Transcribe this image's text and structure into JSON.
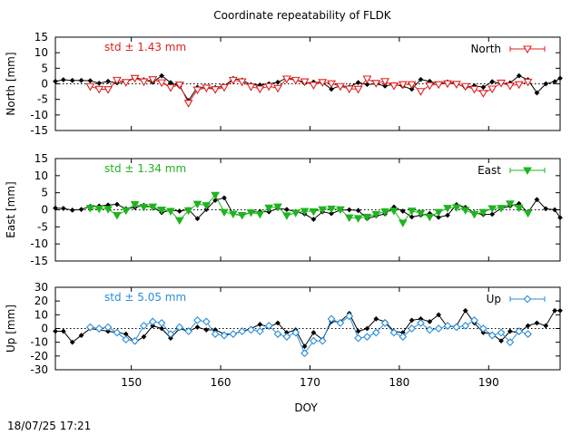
{
  "title": "Coordinate repeatability of FLDK",
  "timestamp": "18/07/25 17:21",
  "chart_data": [
    {
      "type": "line",
      "panel": "north",
      "ylabel": "North [mm]",
      "ylim": [
        -15,
        15
      ],
      "yticks": [
        15,
        10,
        5,
        0,
        -5,
        -10,
        -15
      ],
      "xlim": [
        141.5,
        198
      ],
      "xticks": [
        150,
        160,
        170,
        180,
        190
      ],
      "show_xtick_labels": false,
      "grid": false,
      "zero_line": "dotted",
      "annotation": {
        "text": "std ± 1.43 mm",
        "color": "#e0201e"
      },
      "legend": {
        "label": "North",
        "placement": "top-right",
        "marker": "triangle-down-open",
        "color": "#e0201e"
      },
      "series": [
        {
          "role": "reference",
          "color": "#000000",
          "marker": "diamond",
          "x": [
            141.5,
            142.4,
            143.4,
            144.4,
            145.4,
            146.4,
            147.4,
            148.4,
            149.4,
            150.4,
            151.4,
            152.4,
            153.4,
            154.4,
            155.4,
            156.4,
            157.4,
            158.4,
            159.4,
            160.4,
            161.4,
            162.4,
            163.4,
            164.4,
            165.4,
            166.4,
            167.4,
            168.4,
            169.4,
            170.4,
            171.4,
            172.4,
            173.4,
            174.4,
            175.4,
            176.4,
            177.4,
            178.4,
            179.4,
            180.4,
            181.4,
            182.4,
            183.4,
            184.4,
            185.4,
            186.4,
            187.4,
            188.4,
            189.4,
            190.4,
            191.4,
            192.4,
            193.4,
            194.4,
            195.4,
            196.4,
            197.4,
            198
          ],
          "y": [
            0.8,
            1.3,
            1.1,
            1.1,
            1.0,
            0.2,
            0.8,
            0.3,
            0.6,
            2.0,
            1.3,
            0.5,
            2.6,
            0.4,
            -0.8,
            -5.4,
            -1.1,
            -1.4,
            -1.2,
            -0.8,
            1.7,
            1.2,
            -0.3,
            -0.4,
            0.0,
            0.5,
            1.9,
            1.3,
            0.2,
            0.6,
            0.4,
            -1.7,
            -0.6,
            -1.0,
            0.4,
            -0.2,
            0.0,
            -0.7,
            -0.2,
            -0.8,
            -1.7,
            1.4,
            0.8,
            0.0,
            0.6,
            0.1,
            -1.2,
            -0.6,
            -1.1,
            0.7,
            0.0,
            0.3,
            2.6,
            1.3,
            -2.9,
            0.0,
            0.7,
            1.8
          ]
        },
        {
          "role": "North",
          "color": "#e0201e",
          "marker": "triangle-down-open",
          "x": [
            145.4,
            146.4,
            147.4,
            148.4,
            149.4,
            150.4,
            151.4,
            152.4,
            153.4,
            154.4,
            155.4,
            156.4,
            157.4,
            158.4,
            159.4,
            160.4,
            161.4,
            162.4,
            163.4,
            164.4,
            165.4,
            166.4,
            167.4,
            168.4,
            169.4,
            170.4,
            171.4,
            172.4,
            173.4,
            174.4,
            175.4,
            176.4,
            177.4,
            178.4,
            179.4,
            180.4,
            181.4,
            182.4,
            183.4,
            184.4,
            185.4,
            186.4,
            187.4,
            188.4,
            189.4,
            190.4,
            191.4,
            192.4,
            193.4,
            194.4
          ],
          "y": [
            -0.8,
            -1.7,
            -1.8,
            1.2,
            0.5,
            1.8,
            0.7,
            1.4,
            0.4,
            -1.2,
            -0.3,
            -6.2,
            -1.9,
            -1.3,
            -1.8,
            -1.1,
            1.2,
            0.7,
            -0.9,
            -1.6,
            -0.8,
            -1.4,
            1.6,
            1.2,
            0.7,
            -0.4,
            0.5,
            0.1,
            -0.8,
            -1.6,
            -1.7,
            1.6,
            0.2,
            0.8,
            -0.6,
            -0.2,
            -0.2,
            -2.4,
            -0.5,
            -0.2,
            0.1,
            -0.1,
            -0.8,
            -1.7,
            -3.0,
            -1.6,
            0.3,
            -0.6,
            -0.2,
            0.6
          ]
        }
      ]
    },
    {
      "type": "line",
      "panel": "east",
      "ylabel": "East [mm]",
      "ylim": [
        -15,
        15
      ],
      "yticks": [
        15,
        10,
        5,
        0,
        -5,
        -10,
        -15
      ],
      "xlim": [
        141.5,
        198
      ],
      "xticks": [
        150,
        160,
        170,
        180,
        190
      ],
      "show_xtick_labels": false,
      "grid": false,
      "zero_line": "dotted",
      "annotation": {
        "text": "std ± 1.34 mm",
        "color": "#1fb41f"
      },
      "legend": {
        "label": "East",
        "placement": "top-right",
        "marker": "triangle-down-filled",
        "color": "#1fb41f"
      },
      "series": [
        {
          "role": "reference",
          "color": "#000000",
          "marker": "diamond",
          "x": [
            141.5,
            142.4,
            143.4,
            144.4,
            145.4,
            146.4,
            147.4,
            148.4,
            149.4,
            150.4,
            151.4,
            152.4,
            153.4,
            154.4,
            155.4,
            156.4,
            157.4,
            158.4,
            159.4,
            160.4,
            161.4,
            162.4,
            163.4,
            164.4,
            165.4,
            166.4,
            167.4,
            168.4,
            169.4,
            170.4,
            171.4,
            172.4,
            173.4,
            174.4,
            175.4,
            176.4,
            177.4,
            178.4,
            179.4,
            180.4,
            181.4,
            182.4,
            183.4,
            184.4,
            185.4,
            186.4,
            187.4,
            188.4,
            189.4,
            190.4,
            191.4,
            192.4,
            193.4,
            194.4,
            195.4,
            196.4,
            197.4,
            198
          ],
          "y": [
            0.5,
            0.4,
            -0.1,
            0.1,
            1.0,
            1.1,
            1.4,
            1.6,
            0.3,
            0.7,
            1.3,
            0.7,
            -0.8,
            -0.1,
            -0.4,
            0.1,
            -2.6,
            0.1,
            2.8,
            3.5,
            -1.2,
            -1.7,
            -0.7,
            -0.5,
            -0.6,
            0.4,
            0.1,
            -0.6,
            -1.2,
            -2.8,
            -0.6,
            -1.1,
            -0.1,
            0.0,
            -0.2,
            -2.6,
            -1.8,
            -1.2,
            0.8,
            -0.4,
            -2.1,
            -1.6,
            -1.1,
            -2.2,
            -1.6,
            1.5,
            0.7,
            -0.9,
            -1.4,
            -1.3,
            0.4,
            1.1,
            1.8,
            -0.8,
            3.0,
            0.3,
            0.0,
            -2.3
          ]
        },
        {
          "role": "East",
          "color": "#1fb41f",
          "marker": "triangle-down-filled",
          "x": [
            145.4,
            146.4,
            147.4,
            148.4,
            149.4,
            150.4,
            151.4,
            152.4,
            153.4,
            154.4,
            155.4,
            156.4,
            157.4,
            158.4,
            159.4,
            160.4,
            161.4,
            162.4,
            163.4,
            164.4,
            165.4,
            166.4,
            167.4,
            168.4,
            169.4,
            170.4,
            171.4,
            172.4,
            173.4,
            174.4,
            175.4,
            176.4,
            177.4,
            178.4,
            179.4,
            180.4,
            181.4,
            182.4,
            183.4,
            184.4,
            185.4,
            186.4,
            187.4,
            188.4,
            189.4,
            190.4,
            191.4,
            192.4,
            193.4,
            194.4
          ],
          "y": [
            0.5,
            0.3,
            0.2,
            -1.6,
            -0.2,
            1.6,
            0.8,
            0.9,
            0.0,
            -0.4,
            -3.1,
            -0.2,
            1.7,
            1.3,
            4.3,
            -0.7,
            -1.2,
            -1.6,
            -0.8,
            -1.3,
            0.6,
            0.9,
            -1.7,
            -0.9,
            -0.4,
            -0.5,
            0.1,
            0.3,
            0.1,
            -2.3,
            -2.5,
            -2.1,
            -1.3,
            -0.5,
            -0.3,
            -3.8,
            -0.3,
            -1.0,
            -2.1,
            -0.7,
            0.5,
            0.7,
            -0.1,
            -1.3,
            -0.7,
            0.4,
            0.5,
            1.8,
            0.6,
            -1.0
          ]
        }
      ]
    },
    {
      "type": "line",
      "panel": "up",
      "ylabel": "Up [mm]",
      "xlabel": "DOY",
      "ylim": [
        -30,
        30
      ],
      "yticks": [
        30,
        20,
        10,
        0,
        -10,
        -20,
        -30
      ],
      "xlim": [
        141.5,
        198
      ],
      "xticks": [
        150,
        160,
        170,
        180,
        190
      ],
      "xtick_labels": [
        "150",
        "160",
        "170",
        "180",
        "190"
      ],
      "show_xtick_labels": true,
      "grid": false,
      "zero_line": "dotted",
      "annotation": {
        "text": "std ± 5.05 mm",
        "color": "#2a8ed8"
      },
      "legend": {
        "label": "Up",
        "placement": "top-right",
        "marker": "diamond-open",
        "color": "#2a8ed8"
      },
      "series": [
        {
          "role": "reference",
          "color": "#000000",
          "marker": "diamond",
          "x": [
            141.5,
            142.4,
            143.4,
            144.4,
            145.4,
            146.4,
            147.4,
            148.4,
            149.4,
            150.4,
            151.4,
            152.4,
            153.4,
            154.4,
            155.4,
            156.4,
            157.4,
            158.4,
            159.4,
            160.4,
            161.4,
            162.4,
            163.4,
            164.4,
            165.4,
            166.4,
            167.4,
            168.4,
            169.4,
            170.4,
            171.4,
            172.4,
            173.4,
            174.4,
            175.4,
            176.4,
            177.4,
            178.4,
            179.4,
            180.4,
            181.4,
            182.4,
            183.4,
            184.4,
            185.4,
            186.4,
            187.4,
            188.4,
            189.4,
            190.4,
            191.4,
            192.4,
            193.4,
            194.4,
            195.4,
            196.4,
            197.4,
            198
          ],
          "y": [
            -2,
            -2,
            -10,
            -5,
            0,
            -1,
            -2,
            -3,
            -4,
            -10,
            -6,
            2,
            0,
            -7,
            0,
            -2,
            1,
            -1,
            -1,
            -4,
            -4,
            -2,
            0,
            3,
            1,
            4,
            -3,
            -1,
            -13,
            -3,
            -8,
            5,
            5,
            11,
            -2,
            0,
            7,
            5,
            -2,
            -3,
            6,
            7,
            5,
            10,
            1,
            2,
            13,
            4,
            -3,
            -4,
            -9,
            -2,
            -3,
            2,
            4,
            2,
            13,
            13
          ]
        },
        {
          "role": "Up",
          "color": "#2a8ed8",
          "marker": "diamond-open",
          "x": [
            145.4,
            146.4,
            147.4,
            148.4,
            149.4,
            150.4,
            151.4,
            152.4,
            153.4,
            154.4,
            155.4,
            156.4,
            157.4,
            158.4,
            159.4,
            160.4,
            161.4,
            162.4,
            163.4,
            164.4,
            165.4,
            166.4,
            167.4,
            168.4,
            169.4,
            170.4,
            171.4,
            172.4,
            173.4,
            174.4,
            175.4,
            176.4,
            177.4,
            178.4,
            179.4,
            180.4,
            181.4,
            182.4,
            183.4,
            184.4,
            185.4,
            186.4,
            187.4,
            188.4,
            189.4,
            190.4,
            191.4,
            192.4,
            193.4,
            194.4
          ],
          "y": [
            1,
            0,
            1,
            -3,
            -8,
            -9,
            2,
            5,
            4,
            -4,
            1,
            -2,
            6,
            5,
            -4,
            -5,
            -4,
            -2,
            -1,
            -2,
            2,
            -4,
            -6,
            -3,
            -18,
            -9,
            -9,
            7,
            4,
            9,
            -7,
            -6,
            -3,
            4,
            -3,
            -6,
            0,
            4,
            -1,
            0,
            2,
            1,
            2,
            6,
            0,
            -5,
            -3,
            -10,
            -2,
            -4
          ]
        }
      ]
    }
  ]
}
